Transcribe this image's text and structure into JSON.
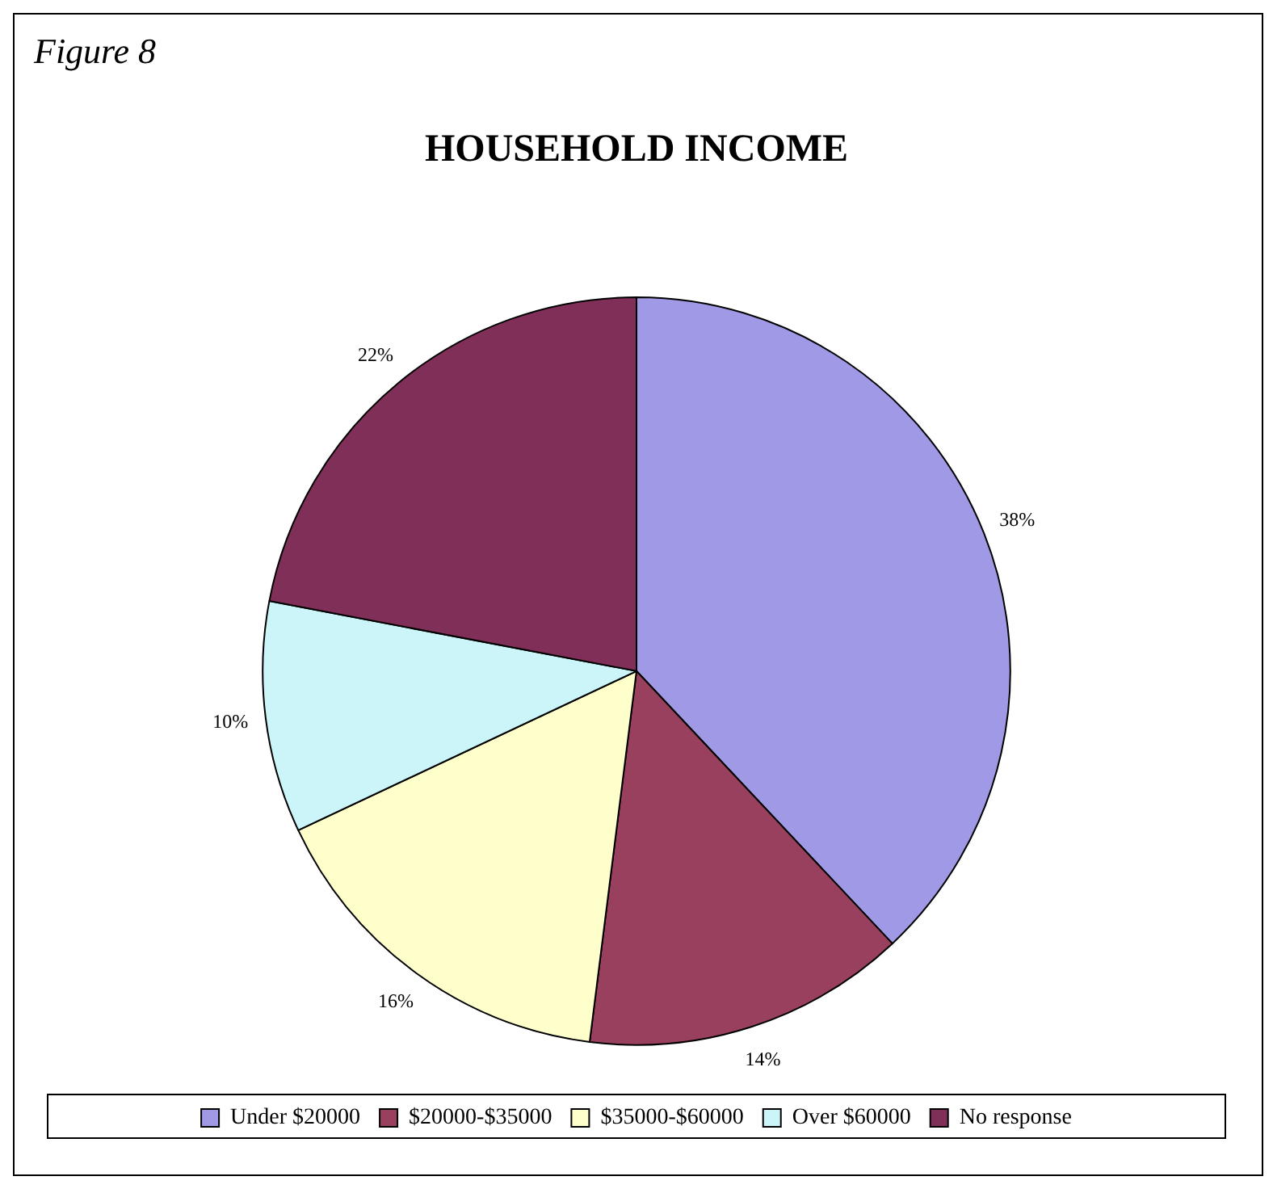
{
  "chart_data": {
    "type": "pie",
    "title": "HOUSEHOLD INCOME",
    "annotations": [
      "Figure 8"
    ],
    "categories": [
      "Under $20000",
      "$20000-$35000",
      "$35000-$60000",
      "Over $60000",
      "No response"
    ],
    "values": [
      38,
      14,
      16,
      10,
      22
    ],
    "value_labels": [
      "38%",
      "14%",
      "16%",
      "10%",
      "22%"
    ],
    "colors": [
      "#9f99e6",
      "#99405e",
      "#ffffcc",
      "#ccf5fa",
      "#803058"
    ],
    "legend": "bottom"
  }
}
